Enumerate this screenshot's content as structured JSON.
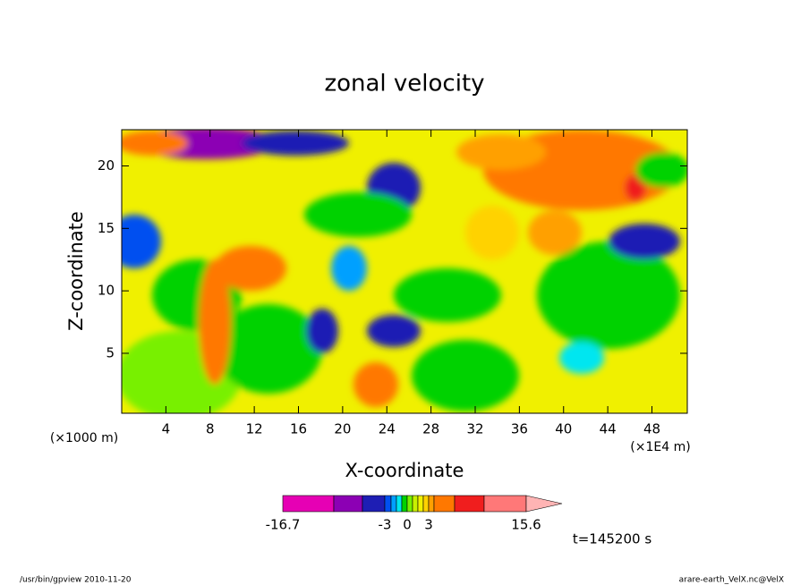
{
  "chart_data": {
    "type": "contour",
    "title": "zonal velocity",
    "x_label": "X-coordinate",
    "y_label": "Z-coordinate",
    "x_unit": "(×1E4 m)",
    "y_unit": "(×1000 m)",
    "xlim": [
      0,
      51.2
    ],
    "ylim": [
      0.2,
      22.9
    ],
    "xticks": [
      4,
      8,
      12,
      16,
      20,
      24,
      28,
      32,
      36,
      40,
      44,
      48
    ],
    "yticks": [
      5,
      10,
      15,
      20
    ],
    "colorbar": {
      "levels": [
        -16.7,
        -12,
        -7.5,
        -3,
        -2.25,
        -1.5,
        -0.75,
        0,
        0.75,
        1.5,
        2.25,
        3,
        5,
        8,
        11.6,
        15.6
      ],
      "colors": [
        "#e600b4",
        "#8c00b4",
        "#1e1eb4",
        "#0050f0",
        "#00a0ff",
        "#00e6f0",
        "#00d200",
        "#78f000",
        "#c8f000",
        "#f0f000",
        "#ffd200",
        "#ffa000",
        "#ff7800",
        "#f01e1e",
        "#ff7878",
        "#ffb4b4"
      ],
      "ticks": [
        -16.7,
        -3,
        0,
        3,
        15.6
      ]
    },
    "time_label": "t=145200 s",
    "footer_left": "/usr/bin/gpview   2010-11-20",
    "footer_right": "arare-earth_VelX.nc@VelX"
  }
}
